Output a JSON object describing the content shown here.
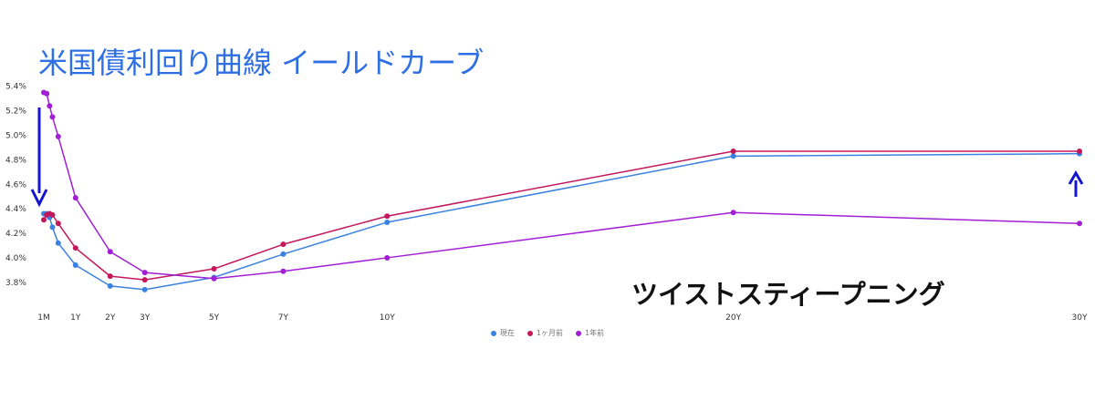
{
  "chart_data": {
    "type": "line",
    "title": "米国債利回り曲線 イールドカーブ",
    "annotation": "ツイストスティープニング",
    "x_labels": [
      "1M",
      "1Y",
      "2Y",
      "3Y",
      "5Y",
      "7Y",
      "10Y",
      "20Y",
      "30Y"
    ],
    "x_label_positions": [
      0.083,
      1,
      2,
      3,
      5,
      7,
      10,
      20,
      30
    ],
    "y_ticks": [
      "5.4%",
      "5.2%",
      "5.0%",
      "4.8%",
      "4.6%",
      "4.4%",
      "4.2%",
      "4.0%",
      "3.8%"
    ],
    "y_tick_values": [
      5.4,
      5.2,
      5.0,
      4.8,
      4.6,
      4.4,
      4.2,
      4.0,
      3.8
    ],
    "ylim": [
      3.65,
      5.45
    ],
    "xlim": [
      0.083,
      30
    ],
    "x": [
      0.083,
      0.167,
      0.25,
      0.333,
      0.5,
      1,
      2,
      3,
      5,
      7,
      10,
      20,
      30
    ],
    "series": [
      {
        "name": "現在",
        "color": "#3b82e0",
        "values": [
          4.36,
          4.36,
          4.33,
          4.25,
          4.12,
          3.94,
          3.77,
          3.74,
          3.84,
          4.03,
          4.29,
          4.83,
          4.85
        ]
      },
      {
        "name": "1ヶ月前",
        "color": "#c2185b",
        "values": [
          4.31,
          4.35,
          4.36,
          4.35,
          4.28,
          4.08,
          3.85,
          3.82,
          3.91,
          4.11,
          4.34,
          4.87,
          4.87
        ]
      },
      {
        "name": "1年前",
        "color": "#a21fd6",
        "values": [
          5.35,
          5.34,
          5.24,
          5.15,
          4.99,
          4.49,
          4.05,
          3.88,
          3.83,
          3.89,
          4.0,
          4.37,
          4.28
        ]
      }
    ],
    "legend_position": "bottom-center",
    "grid": false,
    "arrow_color": "#1515d0"
  }
}
